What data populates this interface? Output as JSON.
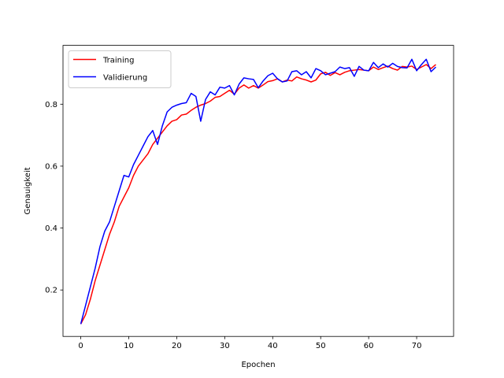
{
  "chart_data": {
    "type": "line",
    "title": "",
    "xlabel": "Epochen",
    "ylabel": "Genauigkeit",
    "xlim": [
      -3.7,
      77.7
    ],
    "ylim": [
      0.05,
      0.99
    ],
    "xticks": [
      0,
      10,
      20,
      30,
      40,
      50,
      60,
      70
    ],
    "yticks": [
      0.2,
      0.4,
      0.6,
      0.8
    ],
    "ytick_labels": [
      "0.2",
      "0.4",
      "0.6",
      "0.8"
    ],
    "grid": false,
    "legend_position": "upper-left",
    "x": [
      0,
      1,
      2,
      3,
      4,
      5,
      6,
      7,
      8,
      9,
      10,
      11,
      12,
      13,
      14,
      15,
      16,
      17,
      18,
      19,
      20,
      21,
      22,
      23,
      24,
      25,
      26,
      27,
      28,
      29,
      30,
      31,
      32,
      33,
      34,
      35,
      36,
      37,
      38,
      39,
      40,
      41,
      42,
      43,
      44,
      45,
      46,
      47,
      48,
      49,
      50,
      51,
      52,
      53,
      54,
      55,
      56,
      57,
      58,
      59,
      60,
      61,
      62,
      63,
      64,
      65,
      66,
      67,
      68,
      69,
      70,
      71,
      72,
      73,
      74
    ],
    "series": [
      {
        "name": "Training",
        "color": "#ff0000",
        "values": [
          0.09,
          0.12,
          0.17,
          0.23,
          0.28,
          0.33,
          0.38,
          0.42,
          0.47,
          0.5,
          0.53,
          0.57,
          0.6,
          0.62,
          0.64,
          0.67,
          0.69,
          0.71,
          0.73,
          0.745,
          0.75,
          0.765,
          0.768,
          0.78,
          0.79,
          0.797,
          0.802,
          0.81,
          0.822,
          0.825,
          0.835,
          0.845,
          0.832,
          0.852,
          0.862,
          0.852,
          0.86,
          0.852,
          0.862,
          0.873,
          0.876,
          0.882,
          0.872,
          0.878,
          0.875,
          0.888,
          0.882,
          0.878,
          0.872,
          0.878,
          0.898,
          0.903,
          0.893,
          0.902,
          0.895,
          0.903,
          0.908,
          0.91,
          0.912,
          0.91,
          0.908,
          0.92,
          0.912,
          0.918,
          0.923,
          0.915,
          0.91,
          0.922,
          0.92,
          0.923,
          0.912,
          0.92,
          0.928,
          0.915,
          0.928
        ]
      },
      {
        "name": "Validierung",
        "color": "#0000ff",
        "values": [
          0.09,
          0.15,
          0.21,
          0.27,
          0.34,
          0.39,
          0.42,
          0.47,
          0.52,
          0.57,
          0.565,
          0.605,
          0.635,
          0.665,
          0.695,
          0.715,
          0.67,
          0.73,
          0.775,
          0.79,
          0.797,
          0.802,
          0.805,
          0.835,
          0.825,
          0.745,
          0.815,
          0.84,
          0.83,
          0.855,
          0.852,
          0.86,
          0.83,
          0.865,
          0.885,
          0.882,
          0.88,
          0.853,
          0.875,
          0.892,
          0.9,
          0.882,
          0.872,
          0.875,
          0.905,
          0.908,
          0.895,
          0.905,
          0.885,
          0.915,
          0.908,
          0.895,
          0.9,
          0.905,
          0.92,
          0.915,
          0.918,
          0.89,
          0.922,
          0.91,
          0.908,
          0.935,
          0.918,
          0.93,
          0.92,
          0.932,
          0.922,
          0.918,
          0.917,
          0.945,
          0.908,
          0.928,
          0.945,
          0.905,
          0.92
        ]
      }
    ]
  }
}
